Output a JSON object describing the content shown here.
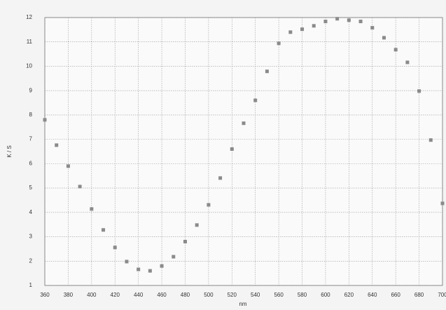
{
  "chart_data": {
    "type": "scatter",
    "xlabel": "nm",
    "ylabel": "K / S",
    "x": [
      360,
      370,
      380,
      390,
      400,
      410,
      420,
      430,
      440,
      450,
      460,
      470,
      480,
      490,
      500,
      510,
      520,
      530,
      540,
      550,
      560,
      570,
      580,
      590,
      600,
      610,
      620,
      630,
      640,
      650,
      660,
      670,
      680,
      690,
      700
    ],
    "values": [
      7.8,
      6.76,
      5.9,
      5.06,
      4.14,
      3.28,
      2.56,
      1.98,
      1.66,
      1.6,
      1.8,
      2.18,
      2.8,
      3.48,
      4.31,
      5.41,
      6.6,
      7.66,
      8.6,
      9.79,
      10.94,
      11.4,
      11.52,
      11.66,
      11.84,
      11.95,
      11.89,
      11.84,
      11.58,
      11.17,
      10.68,
      10.16,
      8.98,
      6.97,
      4.37
    ],
    "color": "#8a8a8a",
    "xlim": [
      360,
      700
    ],
    "xticks": [
      360,
      380,
      400,
      420,
      440,
      460,
      480,
      500,
      520,
      540,
      560,
      580,
      600,
      620,
      640,
      660,
      680,
      700
    ],
    "ylim": [
      1,
      12
    ],
    "yticks": [
      1,
      2,
      3,
      4,
      5,
      6,
      7,
      8,
      9,
      10,
      11,
      12
    ],
    "grid": true
  }
}
